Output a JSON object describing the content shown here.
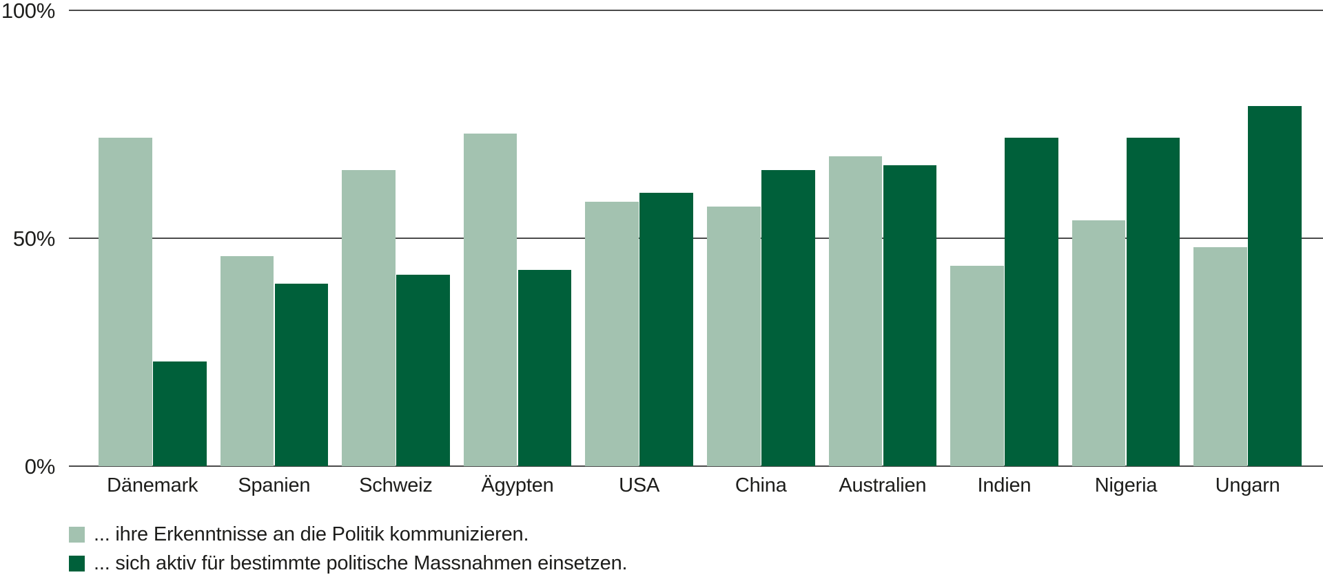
{
  "chart_data": {
    "type": "bar",
    "title": "",
    "categories": [
      "Dänemark",
      "Spanien",
      "Schweiz",
      "Ägypten",
      "USA",
      "China",
      "Australien",
      "Indien",
      "Nigeria",
      "Ungarn"
    ],
    "series": [
      {
        "name": "... ihre Erkenntnisse an die Politik kommunizieren.",
        "color": "#a3c2b0",
        "values": [
          72,
          46,
          65,
          73,
          58,
          57,
          68,
          44,
          54,
          48
        ]
      },
      {
        "name": "... sich aktiv für bestimmte politische Massnahmen einsetzen.",
        "color": "#00603a",
        "values": [
          23,
          40,
          42,
          43,
          60,
          65,
          66,
          72,
          72,
          79
        ]
      }
    ],
    "ylim": [
      0,
      100
    ],
    "yticks": [
      {
        "value": 100,
        "label": "100%"
      },
      {
        "value": 50,
        "label": "50%"
      },
      {
        "value": 0,
        "label": "0%"
      }
    ],
    "grid": "horizontal-lines-at-ticks",
    "legend_position": "bottom-left",
    "axis_color": "#4a4a4a",
    "text_color": "#1d1d1b",
    "background": "#ffffff"
  }
}
